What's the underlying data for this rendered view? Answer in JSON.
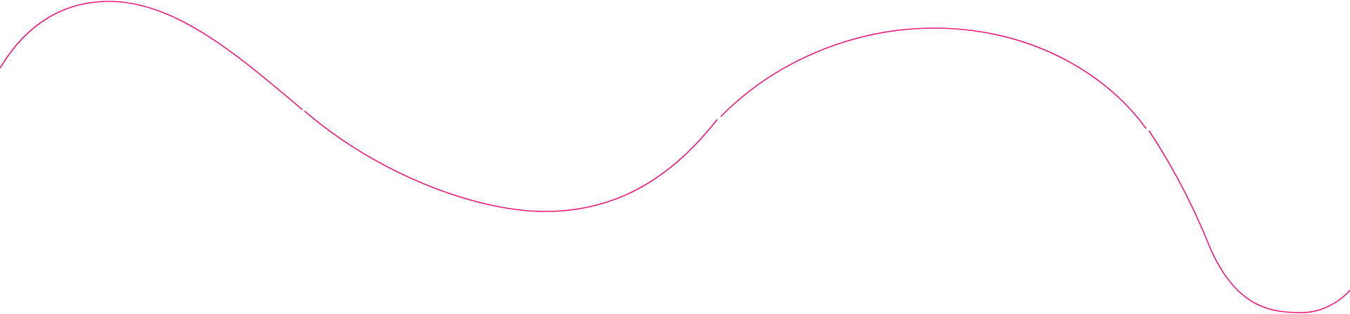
{
  "decoration": {
    "type": "wavy-line",
    "segments": 4,
    "colors": {
      "line": "#ec1a7a",
      "background": "#ffffff"
    }
  }
}
